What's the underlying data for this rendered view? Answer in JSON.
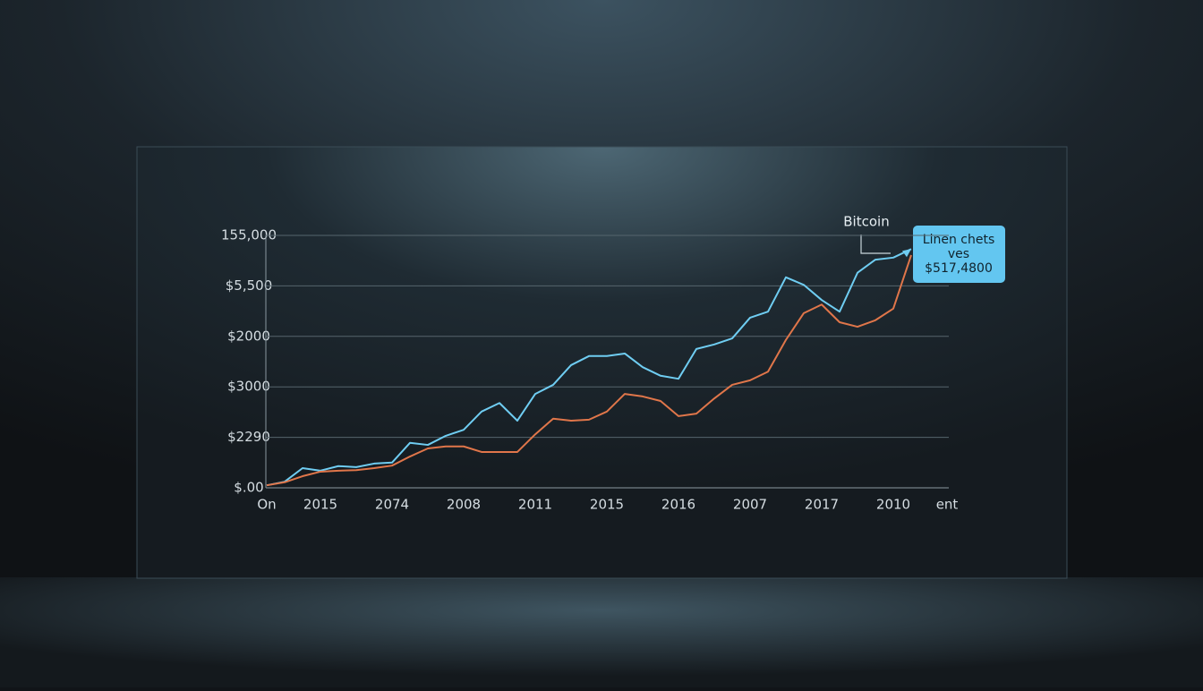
{
  "chart_data": {
    "type": "line",
    "categories": [
      "On",
      null,
      null,
      "2015",
      null,
      null,
      null,
      "2074",
      null,
      null,
      null,
      "2008",
      null,
      null,
      null,
      "2011",
      null,
      null,
      null,
      "2015",
      null,
      null,
      null,
      "2016",
      null,
      null,
      null,
      "2007",
      null,
      null,
      null,
      "2017",
      null,
      null,
      null,
      "2010",
      null,
      null,
      "ent"
    ],
    "series": [
      {
        "name": "Bitcoin",
        "color": "#6fcdf2",
        "values": [
          0.05,
          0.12,
          0.39,
          0.34,
          0.43,
          0.41,
          0.48,
          0.5,
          0.89,
          0.85,
          1.03,
          1.15,
          1.51,
          1.68,
          1.33,
          1.86,
          2.04,
          2.43,
          2.61,
          2.61,
          2.66,
          2.39,
          2.22,
          2.16,
          2.75,
          2.84,
          2.96,
          3.37,
          3.49,
          4.17,
          4.02,
          3.72,
          3.49,
          4.26,
          4.52,
          4.56,
          4.73,
          null,
          null
        ]
      },
      {
        "color": "#e0764a",
        "values": [
          0.05,
          0.11,
          0.23,
          0.32,
          0.34,
          0.35,
          0.39,
          0.44,
          0.62,
          0.78,
          0.82,
          0.82,
          0.71,
          0.71,
          0.71,
          1.06,
          1.37,
          1.33,
          1.35,
          1.51,
          1.86,
          1.81,
          1.72,
          1.42,
          1.47,
          1.77,
          2.04,
          2.13,
          2.3,
          2.93,
          3.46,
          3.63,
          3.28,
          3.19,
          3.32,
          3.55,
          4.61,
          null,
          null
        ]
      }
    ],
    "ylim": [
      0,
      5
    ],
    "yticks": [
      {
        "value": 0,
        "label": "$.00"
      },
      {
        "value": 1,
        "label": "$2290"
      },
      {
        "value": 2,
        "label": "$3000"
      },
      {
        "value": 3,
        "label": "$2000"
      },
      {
        "value": 4,
        "label": "$5,500"
      },
      {
        "value": 5,
        "label": "155,000"
      }
    ],
    "grid": true,
    "annotation": [
      "Linen chets",
      "ves",
      "$517,4800"
    ]
  }
}
